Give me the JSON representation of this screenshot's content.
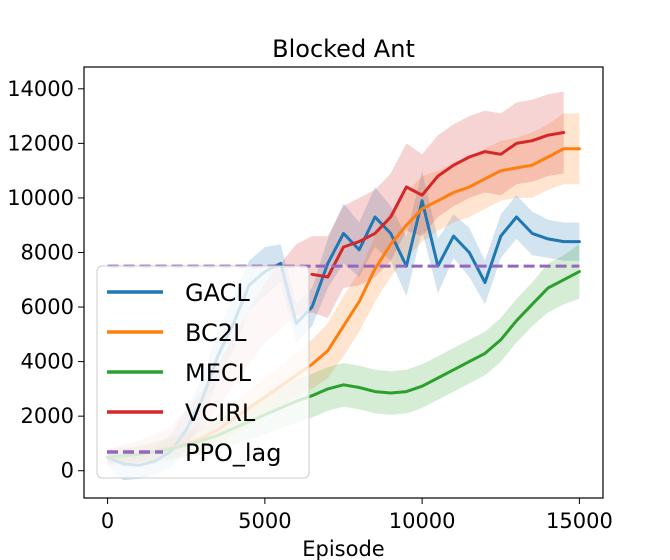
{
  "chart_data": {
    "type": "line",
    "title": "Blocked Ant",
    "xlabel": "Episode",
    "ylabel": "",
    "xlim": [
      -750,
      15750
    ],
    "ylim": [
      -1000,
      14800
    ],
    "xticks": [
      0,
      5000,
      10000,
      15000
    ],
    "xtick_labels": [
      "0",
      "5000",
      "10000",
      "15000"
    ],
    "yticks": [
      0,
      2000,
      4000,
      6000,
      8000,
      10000,
      12000,
      14000
    ],
    "ytick_labels": [
      "0",
      "2000",
      "4000",
      "6000",
      "8000",
      "10000",
      "12000",
      "14000"
    ],
    "legend_position": "lower-left",
    "series": [
      {
        "name": "GACL",
        "color": "#1f77b4",
        "style": "solid",
        "x": [
          0,
          500,
          1000,
          1500,
          2000,
          2500,
          3000,
          3500,
          4000,
          4500,
          5000,
          5500,
          6000,
          6500,
          7000,
          7500,
          8000,
          8500,
          9000,
          9500,
          10000,
          10500,
          11000,
          11500,
          12000,
          12500,
          13000,
          13500,
          14000,
          14500,
          15000
        ],
        "y": [
          500,
          250,
          200,
          350,
          700,
          1500,
          2600,
          4200,
          5400,
          6800,
          7300,
          7600,
          5400,
          6000,
          7600,
          8700,
          8100,
          9300,
          8700,
          7500,
          9900,
          7500,
          8600,
          8000,
          6900,
          8600,
          9300,
          8700,
          8500,
          8400,
          8400
        ],
        "band": [
          300,
          600,
          500,
          500,
          600,
          700,
          800,
          900,
          1000,
          900,
          900,
          700,
          700,
          700,
          900,
          1100,
          1000,
          1100,
          1000,
          1100,
          1100,
          1000,
          800,
          900,
          800,
          800,
          800,
          800,
          700,
          700,
          700
        ]
      },
      {
        "name": "BC2L",
        "color": "#ff7f0e",
        "style": "solid",
        "x": [
          0,
          500,
          1000,
          1500,
          2000,
          2500,
          3000,
          3500,
          4000,
          4500,
          5000,
          5500,
          6000,
          6500,
          7000,
          7500,
          8000,
          8500,
          9000,
          9500,
          10000,
          10500,
          11000,
          11500,
          12000,
          12500,
          13000,
          13500,
          14000,
          14500,
          15000
        ],
        "y": [
          500,
          550,
          600,
          700,
          850,
          1000,
          1200,
          1500,
          1900,
          2300,
          2700,
          3100,
          3500,
          3900,
          4400,
          5300,
          6200,
          7400,
          8300,
          9000,
          9600,
          9900,
          10200,
          10400,
          10700,
          11000,
          11100,
          11200,
          11500,
          11800,
          11800
        ],
        "band": [
          200,
          250,
          300,
          350,
          400,
          450,
          500,
          550,
          600,
          650,
          700,
          750,
          800,
          900,
          1000,
          1100,
          1100,
          1200,
          1200,
          1200,
          1200,
          1100,
          1100,
          1100,
          1100,
          1100,
          1100,
          1200,
          1200,
          1300,
          1300
        ]
      },
      {
        "name": "MECL",
        "color": "#2ca02c",
        "style": "solid",
        "x": [
          0,
          500,
          1000,
          1500,
          2000,
          2500,
          3000,
          3500,
          4000,
          4500,
          5000,
          5500,
          6000,
          6500,
          7000,
          7500,
          8000,
          8500,
          9000,
          9500,
          10000,
          10500,
          11000,
          11500,
          12000,
          12500,
          13000,
          13500,
          14000,
          14500,
          15000
        ],
        "y": [
          500,
          550,
          600,
          700,
          800,
          950,
          1100,
          1300,
          1550,
          1800,
          2050,
          2300,
          2550,
          2750,
          3000,
          3150,
          3050,
          2900,
          2850,
          2900,
          3100,
          3400,
          3700,
          4000,
          4300,
          4800,
          5500,
          6100,
          6700,
          7000,
          7300
        ],
        "band": [
          200,
          250,
          300,
          350,
          400,
          450,
          500,
          550,
          600,
          650,
          700,
          750,
          800,
          800,
          800,
          800,
          800,
          800,
          800,
          800,
          800,
          800,
          800,
          800,
          800,
          800,
          800,
          800,
          900,
          900,
          1000
        ]
      },
      {
        "name": "VCIRL",
        "color": "#d62728",
        "style": "solid",
        "x": [
          6500,
          7000,
          7500,
          8000,
          8500,
          9000,
          9500,
          10000,
          10500,
          11000,
          11500,
          12000,
          12500,
          13000,
          13500,
          14000,
          14500
        ],
        "y": [
          7200,
          7100,
          8200,
          8400,
          8700,
          9300,
          10400,
          10100,
          10800,
          11200,
          11500,
          11700,
          11600,
          12000,
          12100,
          12300,
          12400
        ],
        "band_x": [
          0,
          1000,
          2000,
          3000,
          4000,
          5000,
          6000,
          6500,
          7000,
          7500,
          8000,
          8500,
          9000,
          9500,
          10000,
          10500,
          11000,
          11500,
          12000,
          12500,
          13000,
          13500,
          14000,
          14500
        ],
        "band_center": [
          500,
          700,
          1100,
          2200,
          4000,
          5800,
          7000,
          7200,
          7100,
          8200,
          8400,
          8700,
          9300,
          10400,
          10100,
          10800,
          11200,
          11500,
          11700,
          11600,
          12000,
          12100,
          12300,
          12400
        ],
        "band": [
          300,
          400,
          500,
          700,
          900,
          1100,
          1300,
          1400,
          1500,
          1500,
          1600,
          1600,
          1600,
          1600,
          1500,
          1500,
          1500,
          1500,
          1500,
          1500,
          1500,
          1500,
          1500,
          1500
        ]
      },
      {
        "name": "PPO_lag",
        "color": "#9467bd",
        "style": "dashed",
        "x": [
          0,
          15000
        ],
        "y": [
          7500,
          7500
        ]
      }
    ]
  }
}
